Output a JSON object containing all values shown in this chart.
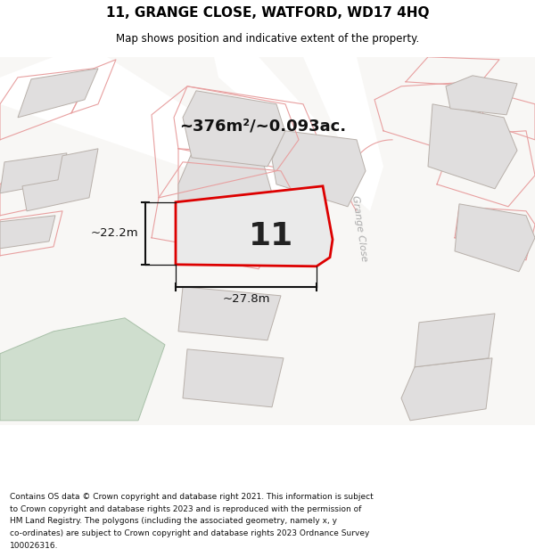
{
  "title": "11, GRANGE CLOSE, WATFORD, WD17 4HQ",
  "subtitle": "Map shows position and indicative extent of the property.",
  "area_label": "~376m²/~0.093ac.",
  "property_number": "11",
  "dim_height": "~22.2m",
  "dim_width": "~27.8m",
  "road_label": "Grange Close",
  "footer_lines": [
    "Contains OS data © Crown copyright and database right 2021. This information is subject",
    "to Crown copyright and database rights 2023 and is reproduced with the permission of",
    "HM Land Registry. The polygons (including the associated geometry, namely x, y",
    "co-ordinates) are subject to Crown copyright and database rights 2023 Ordnance Survey",
    "100026316."
  ],
  "map_bg": "#f7f6f4",
  "road_bg": "#ffffff",
  "building_fill": "#e8e8e8",
  "building_edge": "#c0b8b0",
  "neighbor_outline": "#e8a0a0",
  "green_fill": "#d0ddd0",
  "green_edge": "#b0c4b0",
  "property_fill": "#e8e8e8",
  "property_edge": "#dd0000",
  "annotation_color": "#111111",
  "road_label_color": "#aaaaaa",
  "area_label_color": "#111111",
  "number_color": "#222222",
  "footer_bg": "#ffffff"
}
